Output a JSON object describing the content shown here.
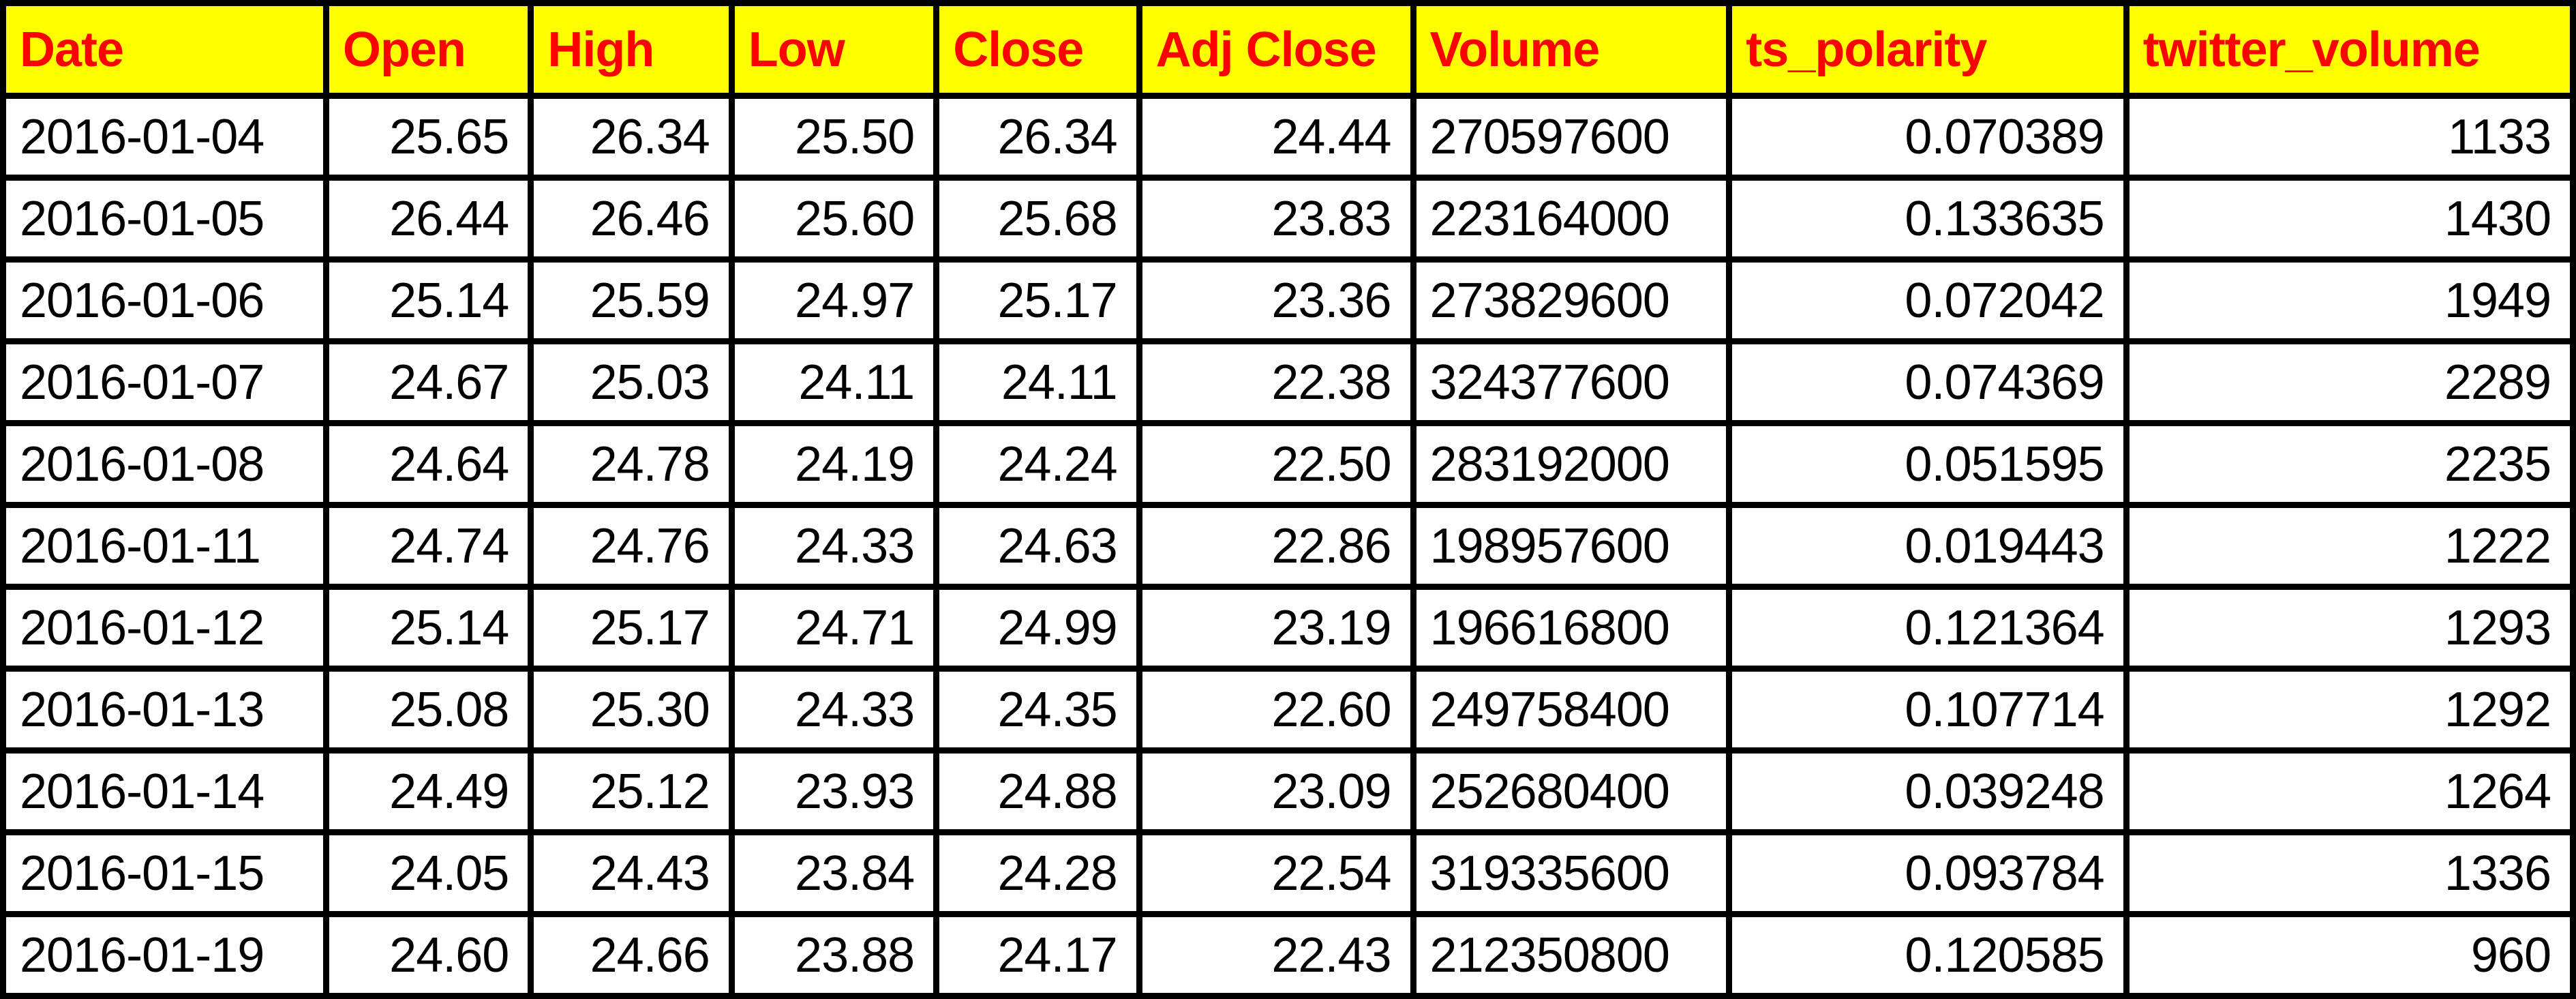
{
  "colors": {
    "header_background": "#FFFF00",
    "header_text": "#FF0000",
    "cell_background": "#FFFFFF",
    "cell_text": "#000000",
    "grid_border": "#000000"
  },
  "chart_data": {
    "type": "table",
    "columns": [
      "Date",
      "Open",
      "High",
      "Low",
      "Close",
      "Adj Close",
      "Volume",
      "ts_polarity",
      "twitter_volume"
    ],
    "column_align": [
      "left",
      "right",
      "right",
      "right",
      "right",
      "right",
      "left",
      "right",
      "right"
    ],
    "rows": [
      [
        "2016-01-04",
        "25.65",
        "26.34",
        "25.50",
        "26.34",
        "24.44",
        "270597600",
        "0.070389",
        "1133"
      ],
      [
        "2016-01-05",
        "26.44",
        "26.46",
        "25.60",
        "25.68",
        "23.83",
        "223164000",
        "0.133635",
        "1430"
      ],
      [
        "2016-01-06",
        "25.14",
        "25.59",
        "24.97",
        "25.17",
        "23.36",
        "273829600",
        "0.072042",
        "1949"
      ],
      [
        "2016-01-07",
        "24.67",
        "25.03",
        "24.11",
        "24.11",
        "22.38",
        "324377600",
        "0.074369",
        "2289"
      ],
      [
        "2016-01-08",
        "24.64",
        "24.78",
        "24.19",
        "24.24",
        "22.50",
        "283192000",
        "0.051595",
        "2235"
      ],
      [
        "2016-01-11",
        "24.74",
        "24.76",
        "24.33",
        "24.63",
        "22.86",
        "198957600",
        "0.019443",
        "1222"
      ],
      [
        "2016-01-12",
        "25.14",
        "25.17",
        "24.71",
        "24.99",
        "23.19",
        "196616800",
        "0.121364",
        "1293"
      ],
      [
        "2016-01-13",
        "25.08",
        "25.30",
        "24.33",
        "24.35",
        "22.60",
        "249758400",
        "0.107714",
        "1292"
      ],
      [
        "2016-01-14",
        "24.49",
        "25.12",
        "23.93",
        "24.88",
        "23.09",
        "252680400",
        "0.039248",
        "1264"
      ],
      [
        "2016-01-15",
        "24.05",
        "24.43",
        "23.84",
        "24.28",
        "22.54",
        "319335600",
        "0.093784",
        "1336"
      ],
      [
        "2016-01-19",
        "24.60",
        "24.66",
        "23.88",
        "24.17",
        "22.43",
        "212350800",
        "0.120585",
        "960"
      ]
    ]
  }
}
